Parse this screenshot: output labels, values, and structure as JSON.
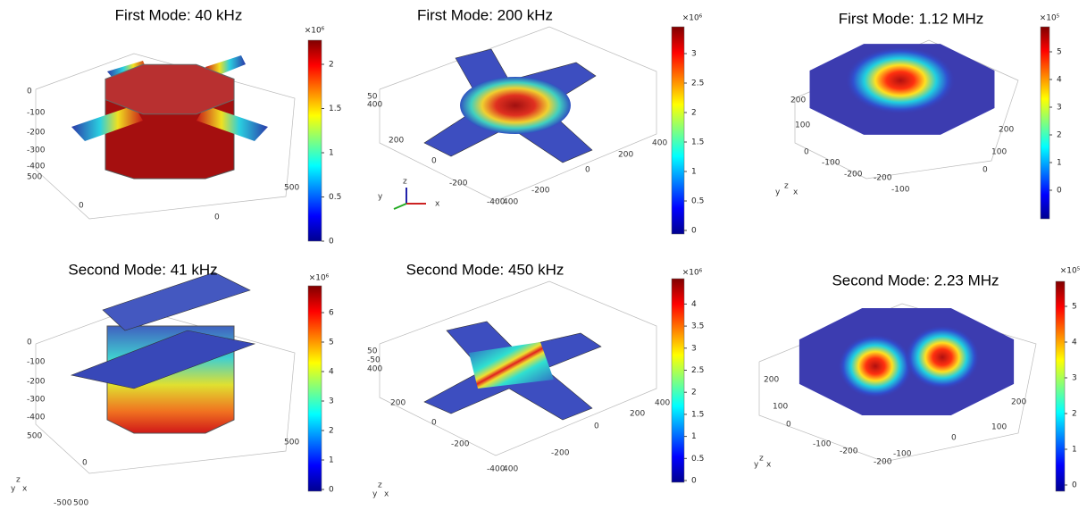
{
  "panels": [
    {
      "title": "First Mode: 40 kHz",
      "multiplier": "×10⁶",
      "colorbar_ticks": [
        "0",
        "0.5",
        "1",
        "1.5",
        "2"
      ],
      "axis_labels": [
        "0",
        "-100",
        "-200",
        "-300",
        "-400",
        "500",
        "500",
        "0",
        "0"
      ]
    },
    {
      "title": "First Mode: 200 kHz",
      "multiplier": "×10⁶",
      "colorbar_ticks": [
        "0",
        "0.5",
        "1",
        "1.5",
        "2",
        "2.5",
        "3"
      ],
      "axis_labels": [
        "50",
        "400",
        "200",
        "0",
        "-200",
        "-400",
        "400",
        "-200",
        "0",
        "200",
        "400",
        "z",
        "y",
        "x"
      ]
    },
    {
      "title": "First Mode: 1.12 MHz",
      "multiplier": "×10⁵",
      "colorbar_ticks": [
        "0",
        "1",
        "2",
        "3",
        "4",
        "5"
      ],
      "axis_labels": [
        "200",
        "100",
        "0",
        "-100",
        "-200",
        "-200",
        "-100",
        "0",
        "100",
        "200",
        "y",
        "z",
        "x"
      ]
    },
    {
      "title": "Second Mode: 41 kHz",
      "multiplier": "×10⁶",
      "colorbar_ticks": [
        "0",
        "1",
        "2",
        "3",
        "4",
        "5",
        "6"
      ],
      "axis_labels": [
        "0",
        "-100",
        "-200",
        "-300",
        "-400",
        "500",
        "500",
        "0",
        "-500",
        "500",
        "y",
        "z",
        "x"
      ]
    },
    {
      "title": "Second Mode: 450 kHz",
      "multiplier": "×10⁶",
      "colorbar_ticks": [
        "0",
        "0.5",
        "1",
        "1.5",
        "2",
        "2.5",
        "3",
        "3.5",
        "4"
      ],
      "axis_labels": [
        "50",
        "-50",
        "400",
        "200",
        "0",
        "-200",
        "-400",
        "400",
        "-200",
        "0",
        "200",
        "400",
        "y",
        "z",
        "x"
      ]
    },
    {
      "title": "Second Mode: 2.23 MHz",
      "multiplier": "×10⁵",
      "colorbar_ticks": [
        "0",
        "1",
        "2",
        "3",
        "4",
        "5"
      ],
      "axis_labels": [
        "200",
        "100",
        "0",
        "-100",
        "-200",
        "-200",
        "-100",
        "0",
        "100",
        "200",
        "y",
        "z",
        "x"
      ]
    }
  ]
}
